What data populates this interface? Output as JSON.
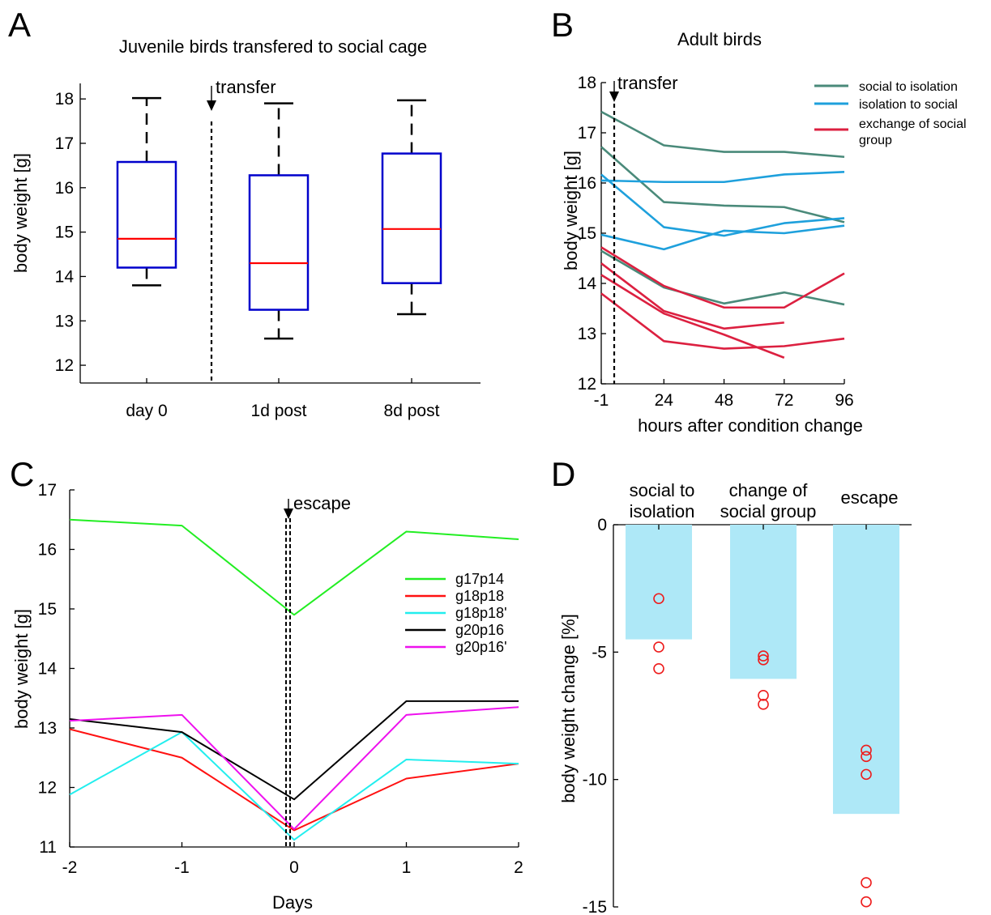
{
  "chart_data": [
    {
      "panel": "A",
      "type": "box",
      "title": "Juvenile birds transfered to social cage",
      "xlabel": "",
      "ylabel": "body weight [g]",
      "ylim": [
        11.6,
        18.35
      ],
      "yticks": [
        12,
        13,
        14,
        15,
        16,
        17,
        18
      ],
      "categories": [
        "day 0",
        "1d post",
        "8d post"
      ],
      "boxes": [
        {
          "min": 13.8,
          "q1": 14.2,
          "median": 14.85,
          "q3": 16.58,
          "max": 18.02
        },
        {
          "min": 12.6,
          "q1": 13.25,
          "median": 14.3,
          "q3": 16.28,
          "max": 17.9
        },
        {
          "min": 13.15,
          "q1": 13.85,
          "median": 15.07,
          "q3": 16.77,
          "max": 17.97
        }
      ],
      "annotation": "transfer",
      "colors": {
        "box": "#0000cc",
        "median": "#ff0000",
        "whisker": "#000000"
      }
    },
    {
      "panel": "B",
      "type": "line",
      "title": "Adult birds",
      "xlabel": "hours after condition change",
      "ylabel": "body weight [g]",
      "xlim": [
        -1,
        96
      ],
      "ylim": [
        12,
        18
      ],
      "xticks": [
        -1,
        24,
        48,
        72,
        96
      ],
      "yticks": [
        12,
        13,
        14,
        15,
        16,
        17,
        18
      ],
      "annotation": "transfer",
      "legend": [
        "social to isolation",
        "isolation to social",
        "exchange of social group"
      ],
      "legend_position": "top-right",
      "colors": {
        "social to isolation": "#4a8a7a",
        "isolation to social": "#1ea0dc",
        "exchange of social group": "#dc2040"
      },
      "series": [
        {
          "group": "social to isolation",
          "x": [
            -1,
            24,
            48,
            72,
            96
          ],
          "y": [
            17.42,
            16.75,
            16.62,
            16.62,
            16.52
          ]
        },
        {
          "group": "social to isolation",
          "x": [
            -1,
            24,
            48,
            72,
            96
          ],
          "y": [
            16.72,
            15.62,
            15.55,
            15.52,
            15.22
          ]
        },
        {
          "group": "social to isolation",
          "x": [
            -1,
            24,
            48,
            72,
            96
          ],
          "y": [
            14.65,
            13.92,
            13.6,
            13.82,
            13.58
          ]
        },
        {
          "group": "isolation to social",
          "x": [
            -1,
            24,
            48,
            72,
            96
          ],
          "y": [
            16.05,
            16.02,
            16.02,
            16.17,
            16.22
          ]
        },
        {
          "group": "isolation to social",
          "x": [
            -1,
            24,
            48,
            72,
            96
          ],
          "y": [
            16.17,
            15.12,
            14.95,
            15.2,
            15.3
          ]
        },
        {
          "group": "isolation to social",
          "x": [
            -1,
            24,
            48,
            72,
            96
          ],
          "y": [
            14.97,
            14.68,
            15.05,
            15.0,
            15.15
          ]
        },
        {
          "group": "exchange of social group",
          "x": [
            -1,
            24,
            48,
            72,
            96
          ],
          "y": [
            14.72,
            13.95,
            13.52,
            13.52,
            14.2
          ]
        },
        {
          "group": "exchange of social group",
          "x": [
            -1,
            24,
            48,
            72
          ],
          "y": [
            14.4,
            13.45,
            13.1,
            13.22
          ]
        },
        {
          "group": "exchange of social group",
          "x": [
            -1,
            24,
            48,
            72
          ],
          "y": [
            14.17,
            13.4,
            12.98,
            12.52
          ]
        },
        {
          "group": "exchange of social group",
          "x": [
            -1,
            24,
            48,
            72,
            96
          ],
          "y": [
            13.8,
            12.85,
            12.7,
            12.75,
            12.9
          ]
        }
      ]
    },
    {
      "panel": "C",
      "type": "line",
      "title": "",
      "xlabel": "Days",
      "ylabel": "body weight [g]",
      "xlim": [
        -2,
        2
      ],
      "ylim": [
        11,
        17
      ],
      "xticks": [
        -2,
        -1,
        0,
        1,
        2
      ],
      "yticks": [
        11,
        12,
        13,
        14,
        15,
        16,
        17
      ],
      "annotation": "escape",
      "legend_position": "right",
      "series": [
        {
          "name": "g17p14",
          "color": "#22ee22",
          "x": [
            -2,
            -1,
            0,
            1,
            2
          ],
          "y": [
            16.5,
            16.4,
            14.9,
            16.3,
            16.17
          ]
        },
        {
          "name": "g18p18",
          "color": "#ff1111",
          "x": [
            -2,
            -1,
            0,
            1,
            2
          ],
          "y": [
            12.98,
            12.5,
            11.28,
            12.15,
            12.4
          ]
        },
        {
          "name": "g18p18'",
          "color": "#22eeee",
          "x": [
            -2,
            -1,
            0,
            1,
            2
          ],
          "y": [
            11.88,
            12.93,
            11.12,
            12.47,
            12.4
          ]
        },
        {
          "name": "g20p16",
          "color": "#000000",
          "x": [
            -2,
            -1,
            0,
            1,
            2
          ],
          "y": [
            13.15,
            12.93,
            11.8,
            13.45,
            13.45
          ]
        },
        {
          "name": "g20p16'",
          "color": "#ee11ee",
          "x": [
            -2,
            -1,
            0,
            1,
            2
          ],
          "y": [
            13.12,
            13.22,
            11.3,
            13.22,
            13.35
          ]
        }
      ]
    },
    {
      "panel": "D",
      "type": "bar",
      "title": "",
      "xlabel": "",
      "ylabel": "body weight change [%]",
      "ylim": [
        -15,
        0
      ],
      "yticks": [
        0,
        -5,
        -10,
        -15
      ],
      "categories": [
        [
          "social to",
          "isolation"
        ],
        [
          "change of",
          "social group"
        ],
        [
          "escape"
        ]
      ],
      "values": [
        -4.5,
        -6.05,
        -11.35
      ],
      "points": [
        [
          -2.9,
          -4.8,
          -5.65
        ],
        [
          -5.15,
          -5.3,
          -6.7,
          -7.05
        ],
        [
          -8.85,
          -9.1,
          -9.8,
          -14.05,
          -14.8
        ]
      ],
      "colors": {
        "bar": "#aee8f7",
        "points": "#ee1c1c"
      }
    }
  ]
}
